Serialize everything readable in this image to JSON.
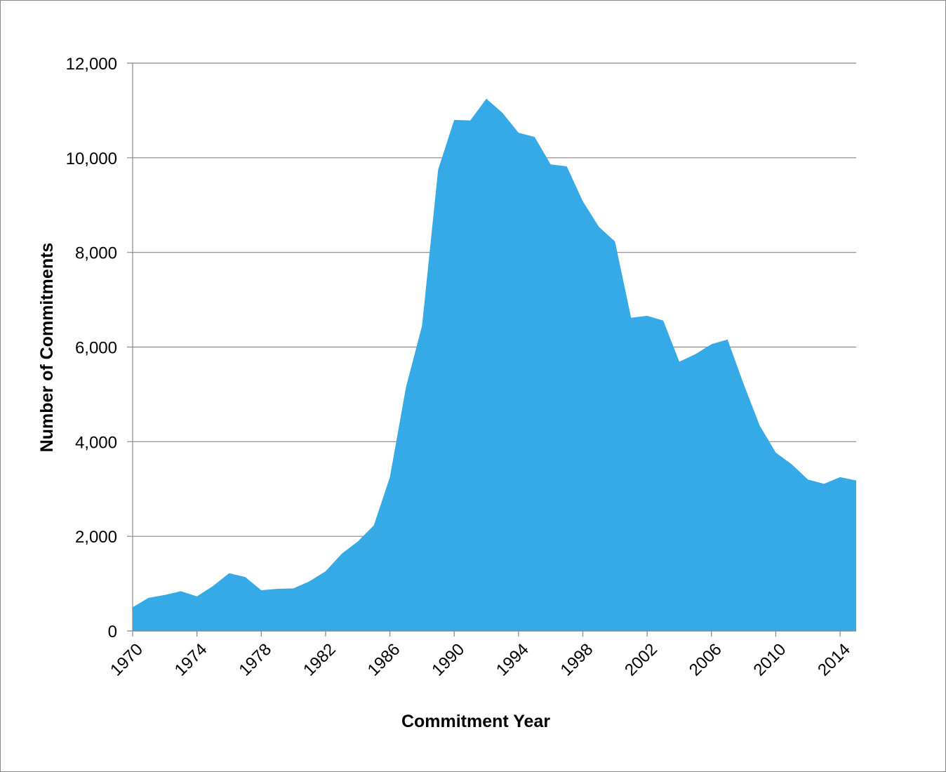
{
  "chart_data": {
    "type": "area",
    "x_label": "Commitment Year",
    "y_label": "Number of Commitments",
    "x": [
      1970,
      1971,
      1972,
      1973,
      1974,
      1975,
      1976,
      1977,
      1978,
      1979,
      1980,
      1981,
      1982,
      1983,
      1984,
      1985,
      1986,
      1987,
      1988,
      1989,
      1990,
      1991,
      1992,
      1993,
      1994,
      1995,
      1996,
      1997,
      1998,
      1999,
      2000,
      2001,
      2002,
      2003,
      2004,
      2005,
      2006,
      2007,
      2008,
      2009,
      2010,
      2011,
      2012,
      2013,
      2014,
      2015
    ],
    "values": [
      500,
      700,
      760,
      840,
      730,
      950,
      1220,
      1140,
      860,
      890,
      900,
      1050,
      1260,
      1630,
      1890,
      2230,
      3250,
      5150,
      6450,
      9750,
      10800,
      10790,
      11250,
      10950,
      10530,
      10440,
      9860,
      9820,
      9080,
      8540,
      8230,
      6620,
      6660,
      6560,
      5690,
      5850,
      6060,
      6160,
      5220,
      4340,
      3770,
      3520,
      3200,
      3110,
      3250,
      3180
    ],
    "color": "#35aae6",
    "xlim": [
      1970,
      2015
    ],
    "xticks": [
      1970,
      1974,
      1978,
      1982,
      1986,
      1990,
      1994,
      1998,
      2002,
      2006,
      2010,
      2014
    ],
    "ylim": [
      0,
      12000
    ],
    "yticks": [
      0,
      {
        "value": 2000,
        "label": "2,000"
      },
      {
        "value": 4000,
        "label": "4,000"
      },
      {
        "value": 6000,
        "label": "6,000"
      },
      {
        "value": 8000,
        "label": "8,000"
      },
      {
        "value": 10000,
        "label": "10,000"
      },
      {
        "value": 12000,
        "label": "12,000"
      }
    ],
    "grid": true
  }
}
